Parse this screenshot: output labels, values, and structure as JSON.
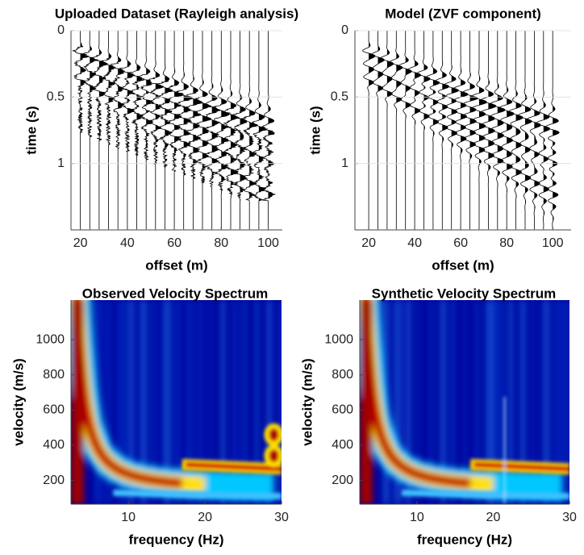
{
  "chart_data": [
    {
      "type": "seismogram",
      "title": "Uploaded Dataset (Rayleigh analysis)",
      "xlabel": "offset (m)",
      "ylabel": "time (s)",
      "xlim": [
        16,
        106
      ],
      "ylim": [
        0,
        1.5
      ],
      "xticks": [
        20,
        40,
        60,
        80,
        100
      ],
      "yticks": [
        0,
        0.5,
        1
      ],
      "grid": true
    },
    {
      "type": "seismogram",
      "title": "Model (ZVF component)",
      "xlabel": "offset (m)",
      "ylabel": "time (s)",
      "xlim": [
        14,
        108
      ],
      "ylim": [
        0,
        1.5
      ],
      "xticks": [
        20,
        40,
        60,
        80,
        100
      ],
      "yticks": [
        0,
        0.5,
        1
      ],
      "grid": true
    },
    {
      "type": "heatmap",
      "title": "Observed Velocity Spectrum",
      "xlabel": "frequency (Hz)",
      "ylabel": "velocity (m/s)",
      "xlim": [
        2.5,
        30
      ],
      "ylim": [
        65,
        1225
      ],
      "xticks": [
        10,
        20,
        30
      ],
      "yticks": [
        200,
        400,
        600,
        800,
        1000
      ]
    },
    {
      "type": "heatmap",
      "title": "Synthetic Velocity Spectrum",
      "xlabel": "frequency (Hz)",
      "ylabel": "velocity (m/s)",
      "xlim": [
        2.5,
        30
      ],
      "ylim": [
        65,
        1225
      ],
      "xticks": [
        10,
        20,
        30
      ],
      "yticks": [
        200,
        400,
        600,
        800,
        1000
      ]
    }
  ]
}
